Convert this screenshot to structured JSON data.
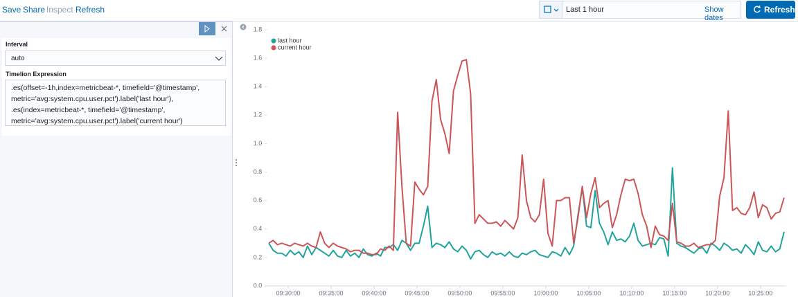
{
  "toolbar": {
    "links": [
      "Save",
      "Share",
      "Inspect",
      "Refresh"
    ]
  },
  "date_picker": {
    "range": "Last 1 hour",
    "show_dates": "Show dates",
    "refresh": "Refresh"
  },
  "editor": {
    "interval_label": "Interval",
    "interval_value": "auto",
    "expression_label": "Timelion Expression",
    "expression_lines": [
      ".es(offset=-1h,index=metricbeat-*, timefield='@timestamp',",
      "metric='avg:system.cpu.user.pct').label('last hour'),",
      ".es(index=metricbeat-*, timefield='@timestamp',",
      "metric='avg:system.cpu.user.pct').label('current hour')"
    ]
  },
  "chart_data": {
    "type": "line",
    "x": [
      "09:27:45",
      "09:28:15",
      "09:28:45",
      "09:29:15",
      "09:29:45",
      "09:30:15",
      "09:30:45",
      "09:31:15",
      "09:31:45",
      "09:32:15",
      "09:32:45",
      "09:33:15",
      "09:33:45",
      "09:34:15",
      "09:34:45",
      "09:35:15",
      "09:35:45",
      "09:36:15",
      "09:36:45",
      "09:37:15",
      "09:37:45",
      "09:38:15",
      "09:38:45",
      "09:39:15",
      "09:39:45",
      "09:40:15",
      "09:40:45",
      "09:41:15",
      "09:41:45",
      "09:42:15",
      "09:42:45",
      "09:43:15",
      "09:43:45",
      "09:44:15",
      "09:44:45",
      "09:45:15",
      "09:45:45",
      "09:46:15",
      "09:46:45",
      "09:47:15",
      "09:47:45",
      "09:48:15",
      "09:48:45",
      "09:49:15",
      "09:49:45",
      "09:50:15",
      "09:50:45",
      "09:51:15",
      "09:51:45",
      "09:52:15",
      "09:52:45",
      "09:53:15",
      "09:53:45",
      "09:54:15",
      "09:54:45",
      "09:55:15",
      "09:55:45",
      "09:56:15",
      "09:56:45",
      "09:57:15",
      "09:57:45",
      "09:58:15",
      "09:58:45",
      "09:59:15",
      "09:59:45",
      "10:00:15",
      "10:00:45",
      "10:01:15",
      "10:01:45",
      "10:02:15",
      "10:02:45",
      "10:03:15",
      "10:03:45",
      "10:04:15",
      "10:04:45",
      "10:05:15",
      "10:05:45",
      "10:06:15",
      "10:06:45",
      "10:07:15",
      "10:07:45",
      "10:08:15",
      "10:08:45",
      "10:09:15",
      "10:09:45",
      "10:10:15",
      "10:10:45",
      "10:11:15",
      "10:11:45",
      "10:12:15",
      "10:12:45",
      "10:13:15",
      "10:13:45",
      "10:14:15",
      "10:14:45",
      "10:15:15",
      "10:15:45",
      "10:16:15",
      "10:16:45",
      "10:17:15",
      "10:17:45",
      "10:18:15",
      "10:18:45",
      "10:19:15",
      "10:19:45",
      "10:20:15",
      "10:20:45",
      "10:21:15",
      "10:21:45",
      "10:22:15",
      "10:22:45",
      "10:23:15",
      "10:23:45",
      "10:24:15",
      "10:24:45",
      "10:25:15",
      "10:25:45",
      "10:26:15",
      "10:26:45",
      "10:27:15",
      "10:27:45"
    ],
    "series": [
      {
        "name": "last hour",
        "color": "#1fa39c",
        "values": [
          0.3,
          0.25,
          0.23,
          0.23,
          0.21,
          0.25,
          0.22,
          0.24,
          0.2,
          0.28,
          0.22,
          0.27,
          0.25,
          0.23,
          0.21,
          0.25,
          0.21,
          0.2,
          0.25,
          0.21,
          0.23,
          0.2,
          0.26,
          0.22,
          0.21,
          0.23,
          0.21,
          0.27,
          0.27,
          0.29,
          0.25,
          0.32,
          0.3,
          0.25,
          0.3,
          0.3,
          0.42,
          0.56,
          0.27,
          0.3,
          0.29,
          0.27,
          0.31,
          0.26,
          0.24,
          0.28,
          0.25,
          0.19,
          0.24,
          0.25,
          0.22,
          0.2,
          0.24,
          0.22,
          0.23,
          0.21,
          0.24,
          0.21,
          0.2,
          0.23,
          0.22,
          0.24,
          0.25,
          0.22,
          0.21,
          0.2,
          0.24,
          0.23,
          0.21,
          0.27,
          0.22,
          0.28,
          0.5,
          0.69,
          0.42,
          0.41,
          0.67,
          0.44,
          0.38,
          0.29,
          0.38,
          0.32,
          0.33,
          0.31,
          0.35,
          0.44,
          0.32,
          0.28,
          0.29,
          0.3,
          0.29,
          0.34,
          0.33,
          0.21,
          0.83,
          0.3,
          0.28,
          0.27,
          0.25,
          0.23,
          0.26,
          0.27,
          0.23,
          0.3,
          0.28,
          0.25,
          0.3,
          0.28,
          0.25,
          0.26,
          0.23,
          0.29,
          0.26,
          0.22,
          0.31,
          0.25,
          0.24,
          0.28,
          0.24,
          0.26,
          0.38
        ]
      },
      {
        "name": "current hour",
        "color": "#cb5558",
        "values": [
          0.3,
          0.32,
          0.29,
          0.3,
          0.29,
          0.28,
          0.3,
          0.29,
          0.28,
          0.3,
          0.28,
          0.27,
          0.38,
          0.3,
          0.27,
          0.3,
          0.28,
          0.27,
          0.26,
          0.24,
          0.25,
          0.25,
          0.23,
          0.23,
          0.22,
          0.22,
          0.26,
          0.25,
          0.28,
          0.25,
          1.22,
          0.7,
          0.3,
          0.28,
          0.73,
          0.68,
          0.64,
          0.7,
          1.3,
          1.45,
          1.17,
          1.07,
          0.93,
          1.37,
          1.48,
          1.58,
          1.59,
          1.35,
          0.44,
          0.5,
          0.47,
          0.44,
          0.44,
          0.45,
          0.42,
          0.46,
          0.43,
          0.4,
          0.48,
          0.92,
          0.6,
          0.48,
          0.45,
          0.5,
          0.75,
          0.37,
          0.28,
          0.6,
          0.6,
          0.62,
          0.62,
          0.3,
          0.48,
          0.7,
          0.48,
          0.65,
          0.76,
          0.55,
          0.58,
          0.6,
          0.41,
          0.5,
          0.64,
          0.75,
          0.74,
          0.75,
          0.65,
          0.5,
          0.42,
          0.27,
          0.42,
          0.36,
          0.35,
          0.32,
          0.58,
          0.31,
          0.3,
          0.28,
          0.28,
          0.3,
          0.27,
          0.28,
          0.29,
          0.29,
          0.32,
          0.63,
          0.76,
          1.23,
          0.53,
          0.55,
          0.51,
          0.5,
          0.55,
          0.66,
          0.48,
          0.57,
          0.55,
          0.47,
          0.51,
          0.52,
          0.62
        ]
      }
    ],
    "xlim": [
      "09:27:30",
      "10:28:00"
    ],
    "xticks": [
      "09:30:00",
      "09:35:00",
      "09:40:00",
      "09:45:00",
      "09:50:00",
      "09:55:00",
      "10:00:00",
      "10:05:00",
      "10:10:00",
      "10:15:00",
      "10:20:00",
      "10:25:00"
    ],
    "ylim": [
      0,
      1.8
    ],
    "yticks": [
      {
        "value": 0,
        "label": "0.0"
      },
      0.2,
      0.4,
      0.6,
      0.8,
      {
        "value": 1,
        "label": "1.0"
      },
      1.2,
      1.4,
      1.6,
      1.8
    ],
    "grid": false,
    "legend": "top-left"
  }
}
